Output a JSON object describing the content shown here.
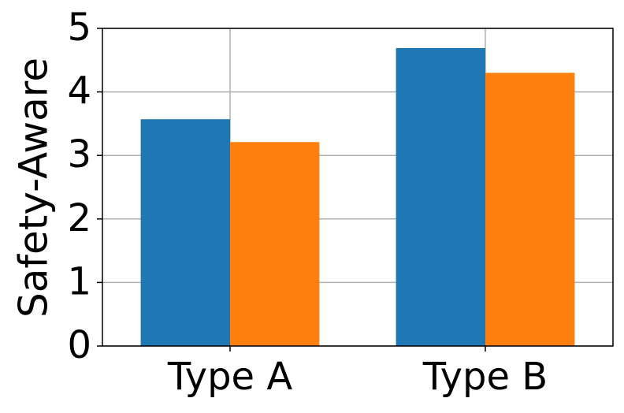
{
  "chart_data": {
    "type": "bar",
    "ylabel": "Safety-Aware",
    "categories": [
      "Type A",
      "Type B"
    ],
    "series": [
      {
        "color": "#1f77b4",
        "values": [
          3.57,
          4.69
        ]
      },
      {
        "color": "#ff7f0e",
        "values": [
          3.21,
          4.3
        ]
      }
    ],
    "ylim": [
      0,
      5
    ],
    "yticks": [
      0,
      1,
      2,
      3,
      4,
      5
    ],
    "grid": true
  }
}
